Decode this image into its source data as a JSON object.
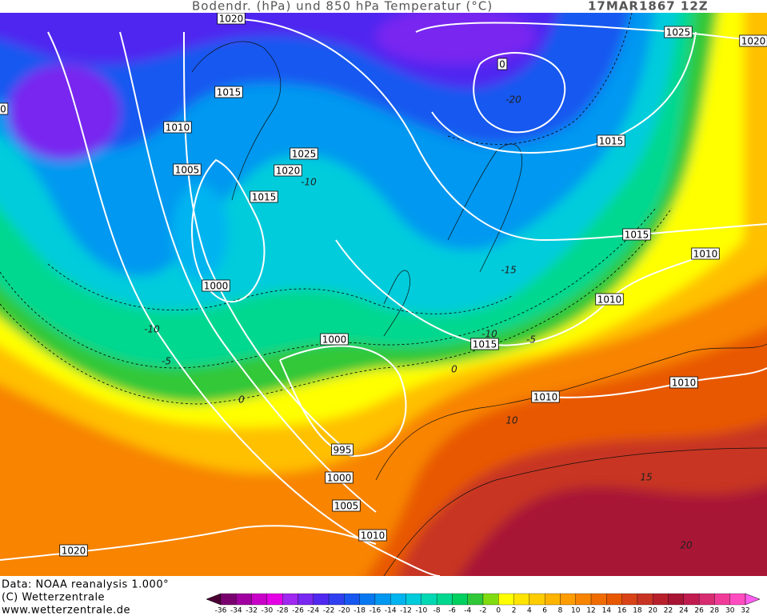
{
  "header": {
    "title": "Bodendr. (hPa) und 850 hPa Temperatur (°C)",
    "date": "17MAR1867 12Z"
  },
  "map": {
    "isobar_labels": [
      "1020",
      "1025",
      "1020",
      "0",
      "0",
      "1015",
      "1010",
      "1015",
      "1005",
      "1025",
      "1020",
      "1015",
      "1015",
      "1010",
      "1000",
      "1010",
      "1000",
      "1015",
      "1010",
      "1010",
      "995",
      "1000",
      "1005",
      "1010",
      "1020"
    ],
    "temperature_labels": [
      "-20",
      "-10",
      "-15",
      "-10",
      "-5",
      "0",
      "-10",
      "-5",
      "0",
      "10",
      "15",
      "20"
    ]
  },
  "footer": {
    "lines": [
      "Data: NOAA reanalysis 1.000°",
      "(C) Wetterzentrale",
      "www.wetterzentrale.de"
    ]
  },
  "colorbar": {
    "labels": [
      -36,
      -34,
      -32,
      -30,
      -28,
      -26,
      -24,
      -22,
      -20,
      -18,
      -16,
      -14,
      -12,
      -10,
      -8,
      -6,
      -4,
      -2,
      0,
      2,
      4,
      6,
      8,
      10,
      12,
      14,
      16,
      18,
      20,
      22,
      24,
      26,
      28,
      30,
      32
    ],
    "colors": [
      "#4a0034",
      "#7a0070",
      "#a000a0",
      "#c800c8",
      "#e600e6",
      "#a028f0",
      "#7828f0",
      "#5028f0",
      "#3040f0",
      "#1858f0",
      "#0878f0",
      "#0098f0",
      "#00b4f0",
      "#00ccdc",
      "#00d8b4",
      "#00d890",
      "#00d060",
      "#30c838",
      "#80dc10",
      "#ffff00",
      "#ffe400",
      "#ffcc00",
      "#ffb400",
      "#ff9c00",
      "#f88400",
      "#f06c00",
      "#e85800",
      "#d84418",
      "#c83424",
      "#b8202c",
      "#a81434",
      "#c01c50",
      "#d82c70",
      "#f03c98",
      "#ff4cc0",
      "#ff5cf0"
    ]
  }
}
